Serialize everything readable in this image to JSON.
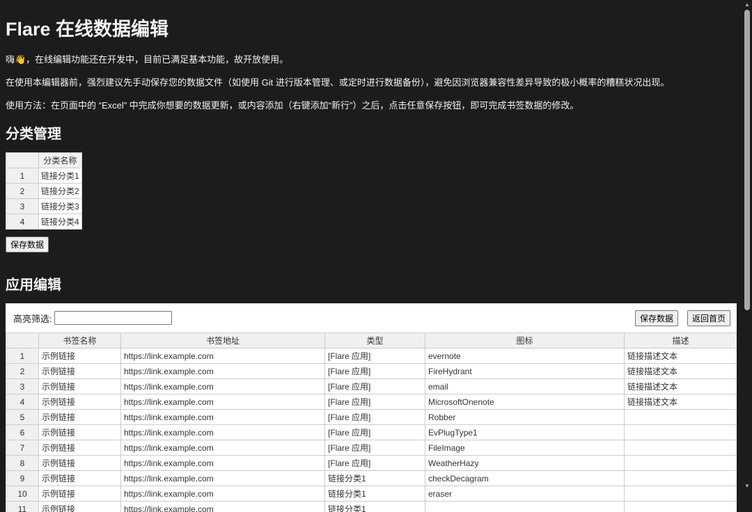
{
  "title": "Flare 在线数据编辑",
  "intro": [
    "嗨👋，在线编辑功能还在开发中，目前已满足基本功能，故开放使用。",
    "在使用本编辑器前，强烈建议先手动保存您的数据文件（如使用 Git 进行版本管理、或定时进行数据备份），避免因浏览器兼容性差异导致的极小概率的糟糕状况出现。",
    "使用方法：在页面中的 “Excel” 中完成你想要的数据更新，或内容添加（右键添加“新行”）之后，点击任意保存按钮，即可完成书签数据的修改。"
  ],
  "categories": {
    "heading": "分类管理",
    "column": "分类名称",
    "rows": [
      {
        "n": "1",
        "name": "链接分类1"
      },
      {
        "n": "2",
        "name": "链接分类2"
      },
      {
        "n": "3",
        "name": "链接分类3"
      },
      {
        "n": "4",
        "name": "链接分类4"
      }
    ],
    "save_label": "保存数据"
  },
  "apps": {
    "heading": "应用编辑",
    "filter_label": "高亮筛选:",
    "filter_value": "",
    "save_label": "保存数据",
    "home_label": "返回首页",
    "columns": [
      "书签名称",
      "书签地址",
      "类型",
      "图标",
      "描述"
    ],
    "rows": [
      [
        "1",
        "示例链接",
        "https://link.example.com",
        "[Flare 应用]",
        "evernote",
        "链接描述文本"
      ],
      [
        "2",
        "示例链接",
        "https://link.example.com",
        "[Flare 应用]",
        "FireHydrant",
        "链接描述文本"
      ],
      [
        "3",
        "示例链接",
        "https://link.example.com",
        "[Flare 应用]",
        "email",
        "链接描述文本"
      ],
      [
        "4",
        "示例链接",
        "https://link.example.com",
        "[Flare 应用]",
        "MicrosoftOnenote",
        "链接描述文本"
      ],
      [
        "5",
        "示例链接",
        "https://link.example.com",
        "[Flare 应用]",
        "Robber",
        ""
      ],
      [
        "6",
        "示例链接",
        "https://link.example.com",
        "[Flare 应用]",
        "EvPlugType1",
        ""
      ],
      [
        "7",
        "示例链接",
        "https://link.example.com",
        "[Flare 应用]",
        "FileImage",
        ""
      ],
      [
        "8",
        "示例链接",
        "https://link.example.com",
        "[Flare 应用]",
        "WeatherHazy",
        ""
      ],
      [
        "9",
        "示例链接",
        "https://link.example.com",
        "链接分类1",
        "checkDecagram",
        ""
      ],
      [
        "10",
        "示例链接",
        "https://link.example.com",
        "链接分类1",
        "eraser",
        ""
      ],
      [
        "11",
        "示例链接",
        "https://link.example.com",
        "链接分类1",
        "",
        ""
      ]
    ]
  }
}
